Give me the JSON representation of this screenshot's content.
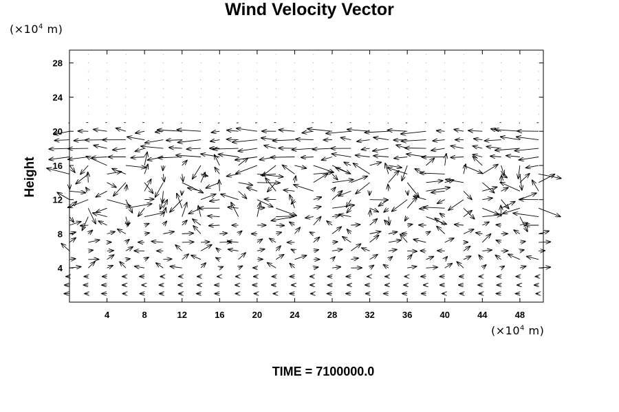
{
  "chart_data": {
    "type": "vector-field",
    "title": "Wind Velocity Vector",
    "ylabel": "Height",
    "xlabel": "",
    "x_unit_prefix": "(×10",
    "x_unit_exp": "4",
    "x_unit_suffix": " m)",
    "y_unit_prefix": "(×10",
    "y_unit_exp": "4",
    "y_unit_suffix": " m)",
    "xlim": [
      0,
      50.5
    ],
    "ylim": [
      0,
      29.5
    ],
    "x_ticks": [
      4,
      8,
      12,
      16,
      20,
      24,
      28,
      32,
      36,
      40,
      44,
      48
    ],
    "y_ticks": [
      4,
      8,
      12,
      16,
      20,
      24,
      28
    ],
    "grid_x_step": 2,
    "grid_y_step": 1,
    "turbulent_y_range": [
      10,
      20
    ],
    "colors": {
      "arrow": "#000000",
      "axis": "#000000",
      "background": "#ffffff"
    }
  },
  "footer": {
    "time_label": "TIME = 7100000.0"
  }
}
